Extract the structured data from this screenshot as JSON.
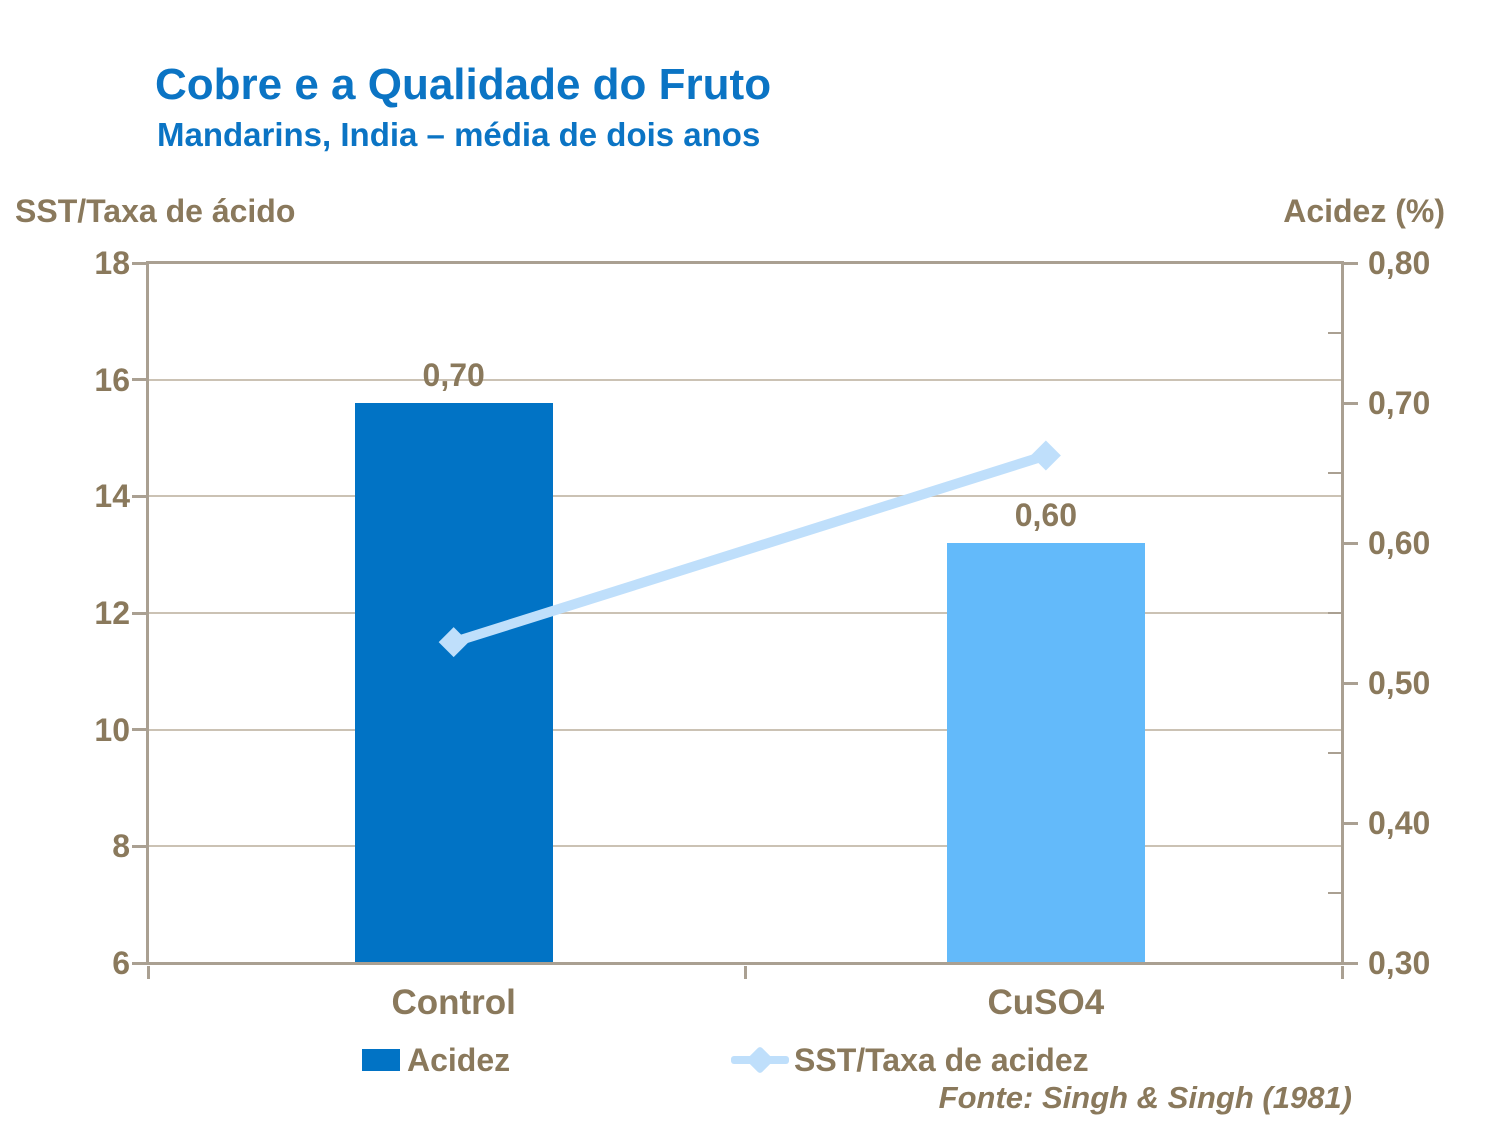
{
  "slide": {
    "title": "Cobre e a Qualidade do Fruto",
    "subtitle": "Mandarins, India – média de dois anos",
    "source": "Fonte: Singh & Singh (1981)"
  },
  "colors": {
    "title_blue": "#0b74c4",
    "text_brown": "#8a795c",
    "axis_line": "#aaa092",
    "gridline": "#cbc2b4",
    "bar_control_blue": "#0173c5",
    "bar_cuso4_blue": "#63bafa",
    "line_pale_blue": "#bfdffb"
  },
  "chart_data": {
    "type": "bar",
    "title": "Cobre e a Qualidade do Fruto",
    "subtitle": "Mandarins, India – média de dois anos",
    "categories": [
      "Control",
      "CuSO4"
    ],
    "series": [
      {
        "name": "Acidez",
        "type": "bar",
        "axis": "right",
        "values": [
          0.7,
          0.6
        ],
        "value_labels": [
          "0,70",
          "0,60"
        ],
        "colors": [
          "#0173c5",
          "#63bafa"
        ]
      },
      {
        "name": "SST/Taxa de acidez",
        "type": "line",
        "axis": "left",
        "values": [
          11.5,
          14.7
        ],
        "color": "#bfdffb",
        "marker": "diamond"
      }
    ],
    "left_axis": {
      "title": "SST/Taxa de ácido",
      "min": 6,
      "max": 18,
      "tick_values": [
        18,
        16,
        14,
        12,
        10,
        8,
        6
      ],
      "tick_labels": [
        "18",
        "16",
        "14",
        "12",
        "10",
        "8",
        "6"
      ]
    },
    "right_axis": {
      "title": "Acidez (%)",
      "min": 0.3,
      "max": 0.8,
      "tick_values": [
        0.8,
        0.7,
        0.6,
        0.5,
        0.4,
        0.3
      ],
      "tick_labels": [
        "0,80",
        "0,70",
        "0,60",
        "0,50",
        "0,40",
        "0,30"
      ],
      "minor_tick_values": [
        0.75,
        0.65,
        0.55,
        0.45,
        0.35
      ]
    },
    "grid": true,
    "legend_position": "bottom",
    "source": "Fonte: Singh & Singh (1981)"
  },
  "legend": {
    "items": [
      {
        "label": "Acidez",
        "marker": "square",
        "color": "#0173c5"
      },
      {
        "label": "SST/Taxa de acidez",
        "marker": "line-diamond",
        "color": "#bfdffb"
      }
    ]
  }
}
